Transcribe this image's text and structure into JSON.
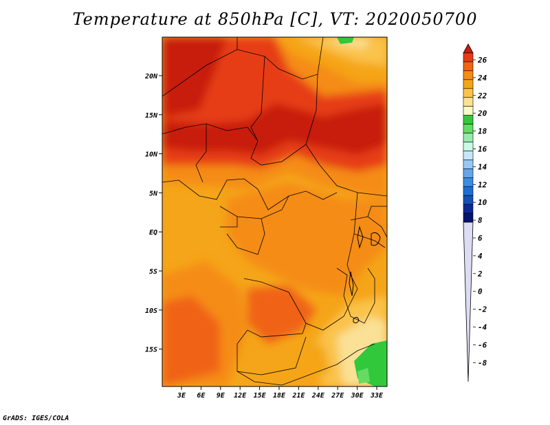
{
  "title": "Temperature at 850hPa [C], VT: 2020050700",
  "footer": "GrADS: IGES/COLA",
  "map": {
    "lat_labels": [
      "20N",
      "15N",
      "10N",
      "5N",
      "EQ",
      "5S",
      "10S",
      "15S"
    ],
    "lon_labels": [
      "3E",
      "6E",
      "9E",
      "12E",
      "15E",
      "18E",
      "21E",
      "24E",
      "27E",
      "30E",
      "33E"
    ]
  },
  "colorbar": {
    "labels": [
      "26",
      "24",
      "22",
      "20",
      "18",
      "16",
      "14",
      "12",
      "10",
      "8",
      "6",
      "4",
      "2",
      "0",
      "-2",
      "-4",
      "-6",
      "-8"
    ],
    "colors": [
      "#c81e0f",
      "#e63c14",
      "#f06414",
      "#f58c14",
      "#f5a519",
      "#fac34b",
      "#fae196",
      "#fafac8",
      "#32c83c",
      "#64dc64",
      "#96ebaa",
      "#c8fae6",
      "#c8e6fa",
      "#96c8f5",
      "#64a5eb",
      "#3c8ce6",
      "#1e6ed2",
      "#1450b4",
      "#0a2896",
      "#05146e",
      "#dcdcf5"
    ]
  }
}
